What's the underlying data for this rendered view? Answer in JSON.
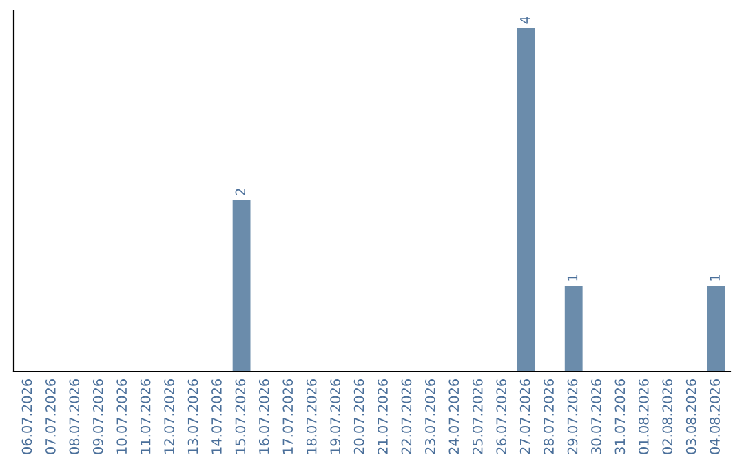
{
  "chart_data": {
    "type": "bar",
    "categories": [
      "06.07.2026",
      "07.07.2026",
      "08.07.2026",
      "09.07.2026",
      "10.07.2026",
      "11.07.2026",
      "12.07.2026",
      "13.07.2026",
      "14.07.2026",
      "15.07.2026",
      "16.07.2026",
      "17.07.2026",
      "18.07.2026",
      "19.07.2026",
      "20.07.2026",
      "21.07.2026",
      "22.07.2026",
      "23.07.2026",
      "24.07.2026",
      "25.07.2026",
      "26.07.2026",
      "27.07.2026",
      "28.07.2026",
      "29.07.2026",
      "30.07.2026",
      "31.07.2026",
      "01.08.2026",
      "02.08.2026",
      "03.08.2026",
      "04.08.2026"
    ],
    "values": [
      0,
      0,
      0,
      0,
      0,
      0,
      0,
      0,
      0,
      2,
      0,
      0,
      0,
      0,
      0,
      0,
      0,
      0,
      0,
      0,
      0,
      4,
      0,
      1,
      0,
      0,
      0,
      0,
      0,
      1
    ],
    "value_labels": [
      null,
      null,
      null,
      null,
      null,
      null,
      null,
      null,
      null,
      "2",
      null,
      null,
      null,
      null,
      null,
      null,
      null,
      null,
      null,
      null,
      null,
      "4",
      null,
      "1",
      null,
      null,
      null,
      null,
      null,
      "1"
    ],
    "color": "#6b8cab",
    "ylim": [
      0,
      4.2
    ],
    "tick_labels": "x",
    "grid": false,
    "legend": false
  }
}
